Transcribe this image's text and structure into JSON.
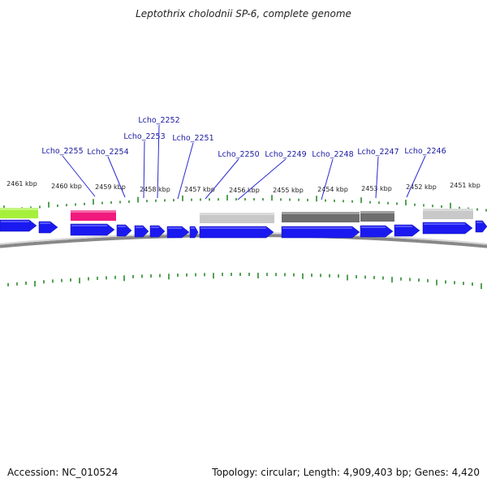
{
  "title": "Leptothrix cholodnii SP-6, complete genome",
  "footer": {
    "accession_label": "Accession:",
    "accession": "NC_010524",
    "topology_label": "Topology:",
    "topology": "circular",
    "length_label": "Length:",
    "length": "4,909,403 bp",
    "genes_label": "Genes:",
    "genes": "4,420"
  },
  "scale_unit": "kbp",
  "kbp_ticks": [
    2461,
    2460,
    2459,
    2458,
    2457,
    2456,
    2455,
    2454,
    2453,
    2452,
    2451
  ],
  "colors": {
    "cds": "#1a1af0",
    "rrna": "#999999",
    "tick": "#2a8a2a",
    "label": "#1a1aa0",
    "leader": "#2a2ad0",
    "green_feature": "#a6f03c",
    "magenta_feature": "#f0197d",
    "light_gray_feature": "#c8c8c8",
    "dark_gray_feature": "#6e6e6e",
    "backbone": "#888888"
  },
  "gene_labels": [
    "Lcho_2255",
    "Lcho_2254",
    "Lcho_2253",
    "Lcho_2252",
    "Lcho_2251",
    "Lcho_2250",
    "Lcho_2249",
    "Lcho_2248",
    "Lcho_2247",
    "Lcho_2246"
  ]
}
